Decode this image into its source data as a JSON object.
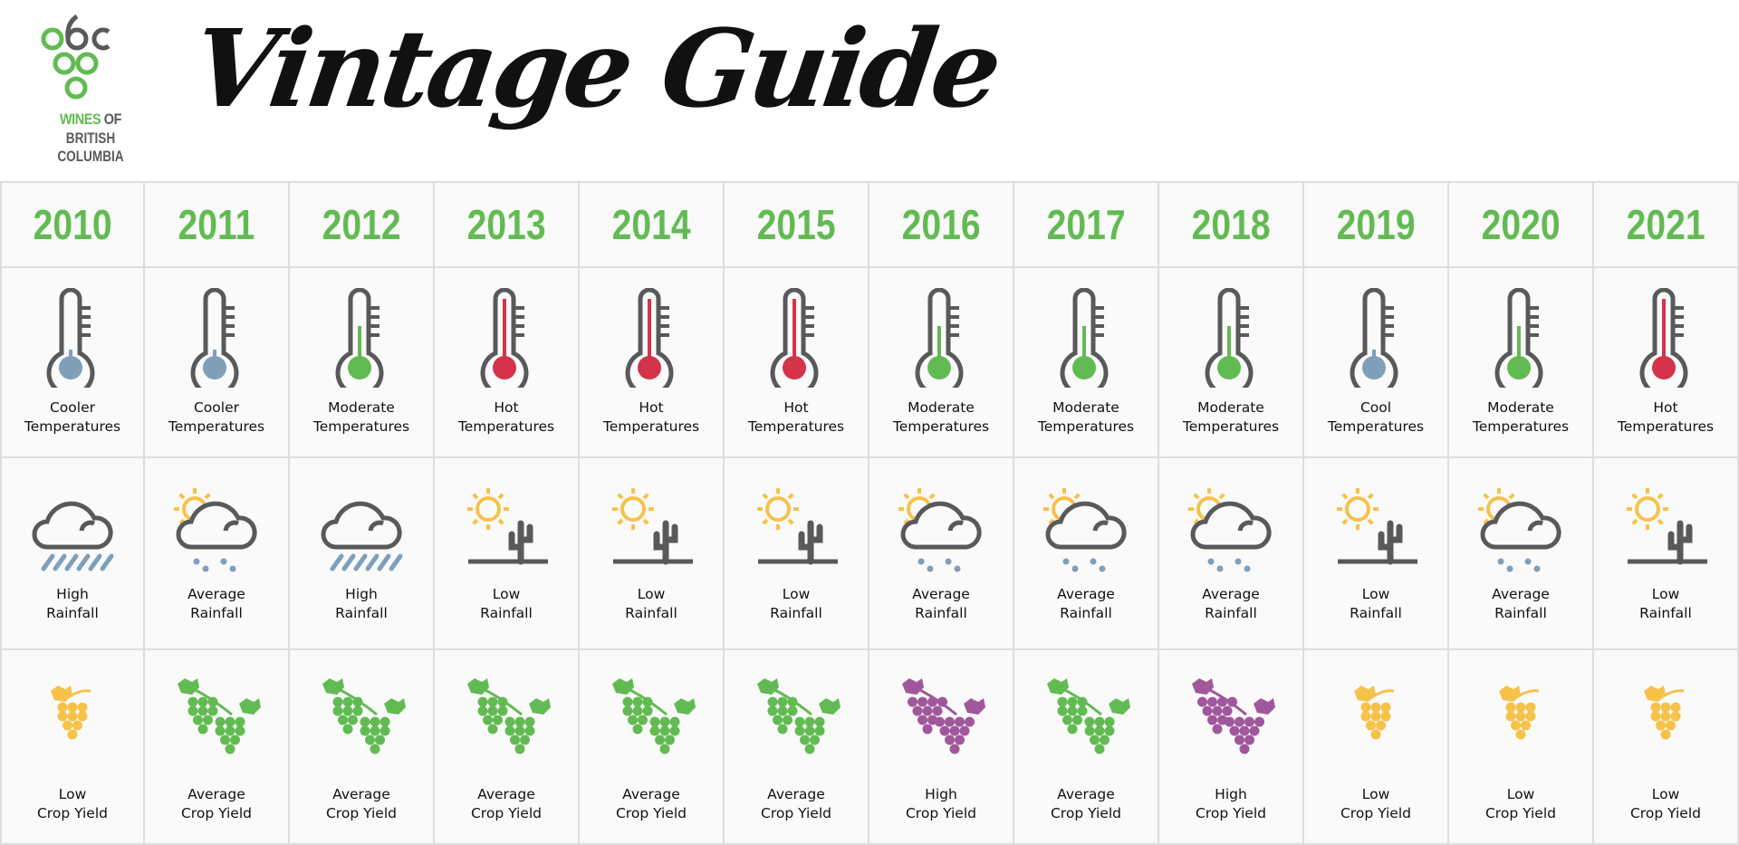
{
  "header": {
    "logo_text_green": "WINES",
    "logo_text_grey": " OF",
    "logo_text_line2": "BRITISH COLUMBIA",
    "title": "Vintage Guide"
  },
  "colors": {
    "green": "#62bb52",
    "grey": "#58595b",
    "blue": "#7f9fba",
    "red": "#d5334a",
    "yellow": "#f7c24a",
    "purple": "#a0579c"
  },
  "years": [
    {
      "year": "2010",
      "temp": [
        "Cooler",
        "Temperatures"
      ],
      "temp_level": "cool",
      "rain": [
        "High",
        "Rainfall"
      ],
      "rain_icon": "rain-cloud",
      "yield": [
        "Low",
        "Crop Yield"
      ],
      "yield_level": "low"
    },
    {
      "year": "2011",
      "temp": [
        "Cooler",
        "Temperatures"
      ],
      "temp_level": "cool",
      "rain": [
        "Average",
        "Rainfall"
      ],
      "rain_icon": "sun-cloud-drops",
      "yield": [
        "Average",
        "Crop Yield"
      ],
      "yield_level": "average"
    },
    {
      "year": "2012",
      "temp": [
        "Moderate",
        "Temperatures"
      ],
      "temp_level": "moderate",
      "rain": [
        "High",
        "Rainfall"
      ],
      "rain_icon": "rain-cloud",
      "yield": [
        "Average",
        "Crop Yield"
      ],
      "yield_level": "average"
    },
    {
      "year": "2013",
      "temp": [
        "Hot",
        "Temperatures"
      ],
      "temp_level": "hot",
      "rain": [
        "Low",
        "Rainfall"
      ],
      "rain_icon": "sun-cactus",
      "yield": [
        "Average",
        "Crop Yield"
      ],
      "yield_level": "average"
    },
    {
      "year": "2014",
      "temp": [
        "Hot",
        "Temperatures"
      ],
      "temp_level": "hot",
      "rain": [
        "Low",
        "Rainfall"
      ],
      "rain_icon": "sun-cactus",
      "yield": [
        "Average",
        "Crop Yield"
      ],
      "yield_level": "average"
    },
    {
      "year": "2015",
      "temp": [
        "Hot",
        "Temperatures"
      ],
      "temp_level": "hot",
      "rain": [
        "Low",
        "Rainfall"
      ],
      "rain_icon": "sun-cactus",
      "yield": [
        "Average",
        "Crop Yield"
      ],
      "yield_level": "average"
    },
    {
      "year": "2016",
      "temp": [
        "Moderate",
        "Temperatures"
      ],
      "temp_level": "moderate",
      "rain": [
        "Average",
        "Rainfall"
      ],
      "rain_icon": "sun-cloud-drops",
      "yield": [
        "High",
        "Crop Yield"
      ],
      "yield_level": "high"
    },
    {
      "year": "2017",
      "temp": [
        "Moderate",
        "Temperatures"
      ],
      "temp_level": "moderate",
      "rain": [
        "Average",
        "Rainfall"
      ],
      "rain_icon": "sun-cloud-drops",
      "yield": [
        "Average",
        "Crop Yield"
      ],
      "yield_level": "average"
    },
    {
      "year": "2018",
      "temp": [
        "Moderate",
        "Temperatures"
      ],
      "temp_level": "moderate",
      "rain": [
        "Average",
        "Rainfall"
      ],
      "rain_icon": "sun-cloud-drops",
      "yield": [
        "High",
        "Crop Yield"
      ],
      "yield_level": "high"
    },
    {
      "year": "2019",
      "temp": [
        "Cool",
        "Temperatures"
      ],
      "temp_level": "cool",
      "rain": [
        "Low",
        "Rainfall"
      ],
      "rain_icon": "sun-cactus",
      "yield": [
        "Low",
        "Crop Yield"
      ],
      "yield_level": "low"
    },
    {
      "year": "2020",
      "temp": [
        "Moderate",
        "Temperatures"
      ],
      "temp_level": "moderate",
      "rain": [
        "Average",
        "Rainfall"
      ],
      "rain_icon": "sun-cloud-drops",
      "yield": [
        "Low",
        "Crop Yield"
      ],
      "yield_level": "low"
    },
    {
      "year": "2021",
      "temp": [
        "Hot",
        "Temperatures"
      ],
      "temp_level": "hot",
      "rain": [
        "Low",
        "Rainfall"
      ],
      "rain_icon": "sun-cactus",
      "yield": [
        "Low",
        "Crop Yield"
      ],
      "yield_level": "low"
    }
  ]
}
